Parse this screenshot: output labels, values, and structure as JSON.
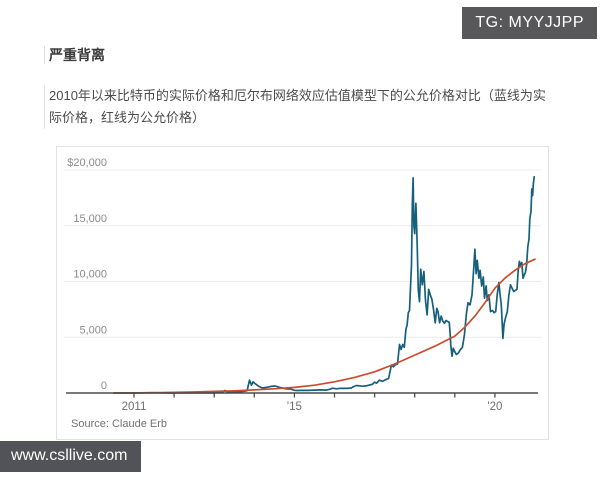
{
  "watermarks": {
    "tg_badge": "TG: MYYJJPP",
    "site_badge": "www.csllive.com"
  },
  "article": {
    "title": "严重背离",
    "body": "2010年以来比特币的实际价格和厄尔布网络效应估值模型下的公允价格对比（蓝线为实际价格，红线为公允价格）"
  },
  "chart_data": {
    "type": "line",
    "title": "",
    "xlabel": "",
    "ylabel": "",
    "source": "Source: Claude Erb",
    "x_range": [
      2010.5,
      2021.1
    ],
    "ylim": [
      0,
      20000
    ],
    "grid": true,
    "legend_position": "none (caption states: blue line = actual price, red line = fair value)",
    "y_ticks": [
      {
        "value": 0,
        "label": "0"
      },
      {
        "value": 5000,
        "label": "5,000"
      },
      {
        "value": 10000,
        "label": "10,000"
      },
      {
        "value": 15000,
        "label": "15,000"
      },
      {
        "value": 20000,
        "label": "$20,000"
      }
    ],
    "x_ticks": [
      {
        "year": 2011,
        "label": "2011"
      },
      {
        "year": 2012,
        "label": ""
      },
      {
        "year": 2013,
        "label": ""
      },
      {
        "year": 2014,
        "label": ""
      },
      {
        "year": 2015,
        "label": "'15"
      },
      {
        "year": 2016,
        "label": ""
      },
      {
        "year": 2017,
        "label": ""
      },
      {
        "year": 2018,
        "label": ""
      },
      {
        "year": 2019,
        "label": ""
      },
      {
        "year": 2020,
        "label": "'20"
      }
    ],
    "colors": {
      "grid": "#ececec",
      "axis": "#4c4c4c",
      "y_label": "#8c8c8c",
      "x_label": "#6e6e6e",
      "source": "#737373",
      "actual": "#16607c",
      "fair_value": "#c84e2f"
    },
    "series": [
      {
        "id": "actual-price",
        "name": "比特币实际价格（蓝线）",
        "color": "#16607c",
        "points": [
          [
            2010.5,
            0
          ],
          [
            2011.0,
            0.5
          ],
          [
            2011.45,
            25
          ],
          [
            2011.9,
            3
          ],
          [
            2012.5,
            8
          ],
          [
            2013.0,
            13
          ],
          [
            2013.2,
            50
          ],
          [
            2013.27,
            230
          ],
          [
            2013.33,
            90
          ],
          [
            2013.5,
            100
          ],
          [
            2013.7,
            130
          ],
          [
            2013.82,
            210
          ],
          [
            2013.88,
            1150
          ],
          [
            2013.93,
            700
          ],
          [
            2013.97,
            1000
          ],
          [
            2014.02,
            840
          ],
          [
            2014.1,
            630
          ],
          [
            2014.2,
            450
          ],
          [
            2014.3,
            500
          ],
          [
            2014.42,
            590
          ],
          [
            2014.52,
            630
          ],
          [
            2014.65,
            480
          ],
          [
            2014.78,
            380
          ],
          [
            2014.9,
            360
          ],
          [
            2015.0,
            240
          ],
          [
            2015.08,
            220
          ],
          [
            2015.2,
            240
          ],
          [
            2015.35,
            235
          ],
          [
            2015.5,
            260
          ],
          [
            2015.65,
            280
          ],
          [
            2015.8,
            260
          ],
          [
            2015.88,
            330
          ],
          [
            2015.95,
            430
          ],
          [
            2016.05,
            380
          ],
          [
            2016.15,
            420
          ],
          [
            2016.3,
            415
          ],
          [
            2016.42,
            450
          ],
          [
            2016.48,
            580
          ],
          [
            2016.55,
            670
          ],
          [
            2016.62,
            650
          ],
          [
            2016.7,
            610
          ],
          [
            2016.78,
            640
          ],
          [
            2016.88,
            720
          ],
          [
            2016.95,
            790
          ],
          [
            2017.0,
            970
          ],
          [
            2017.05,
            890
          ],
          [
            2017.12,
            1150
          ],
          [
            2017.2,
            1050
          ],
          [
            2017.28,
            1200
          ],
          [
            2017.35,
            1300
          ],
          [
            2017.42,
            2500
          ],
          [
            2017.47,
            2350
          ],
          [
            2017.52,
            2550
          ],
          [
            2017.57,
            2600
          ],
          [
            2017.62,
            4350
          ],
          [
            2017.66,
            3900
          ],
          [
            2017.7,
            4350
          ],
          [
            2017.74,
            4100
          ],
          [
            2017.78,
            5700
          ],
          [
            2017.81,
            6100
          ],
          [
            2017.84,
            7200
          ],
          [
            2017.87,
            7400
          ],
          [
            2017.9,
            9900
          ],
          [
            2017.92,
            11500
          ],
          [
            2017.94,
            16800
          ],
          [
            2017.96,
            19300
          ],
          [
            2017.98,
            15000
          ],
          [
            2018.0,
            14300
          ],
          [
            2018.03,
            17000
          ],
          [
            2018.06,
            13600
          ],
          [
            2018.09,
            9200
          ],
          [
            2018.12,
            8200
          ],
          [
            2018.15,
            11100
          ],
          [
            2018.19,
            9700
          ],
          [
            2018.23,
            10900
          ],
          [
            2018.27,
            8300
          ],
          [
            2018.31,
            7000
          ],
          [
            2018.35,
            9300
          ],
          [
            2018.39,
            8800
          ],
          [
            2018.43,
            8400
          ],
          [
            2018.47,
            7500
          ],
          [
            2018.51,
            6300
          ],
          [
            2018.55,
            7600
          ],
          [
            2018.58,
            7300
          ],
          [
            2018.62,
            6300
          ],
          [
            2018.66,
            6900
          ],
          [
            2018.7,
            6450
          ],
          [
            2018.74,
            6250
          ],
          [
            2018.78,
            6500
          ],
          [
            2018.82,
            6400
          ],
          [
            2018.86,
            6350
          ],
          [
            2018.88,
            5500
          ],
          [
            2018.9,
            4300
          ],
          [
            2018.93,
            3300
          ],
          [
            2018.96,
            4000
          ],
          [
            2019.0,
            3700
          ],
          [
            2019.04,
            3450
          ],
          [
            2019.09,
            3600
          ],
          [
            2019.14,
            3900
          ],
          [
            2019.19,
            4100
          ],
          [
            2019.24,
            5200
          ],
          [
            2019.29,
            7100
          ],
          [
            2019.33,
            8100
          ],
          [
            2019.38,
            7900
          ],
          [
            2019.43,
            8800
          ],
          [
            2019.47,
            11000
          ],
          [
            2019.5,
            12900
          ],
          [
            2019.53,
            10700
          ],
          [
            2019.56,
            11900
          ],
          [
            2019.6,
            10300
          ],
          [
            2019.63,
            11000
          ],
          [
            2019.67,
            9600
          ],
          [
            2019.71,
            10400
          ],
          [
            2019.74,
            8500
          ],
          [
            2019.78,
            9600
          ],
          [
            2019.81,
            8300
          ],
          [
            2019.85,
            8800
          ],
          [
            2019.89,
            7300
          ],
          [
            2019.94,
            7400
          ],
          [
            2019.98,
            7200
          ],
          [
            2020.02,
            7300
          ],
          [
            2020.06,
            8900
          ],
          [
            2020.1,
            9900
          ],
          [
            2020.13,
            8800
          ],
          [
            2020.16,
            7900
          ],
          [
            2020.2,
            4900
          ],
          [
            2020.23,
            6200
          ],
          [
            2020.27,
            6800
          ],
          [
            2020.31,
            7300
          ],
          [
            2020.35,
            8800
          ],
          [
            2020.39,
            9700
          ],
          [
            2020.43,
            9400
          ],
          [
            2020.47,
            9100
          ],
          [
            2020.51,
            9200
          ],
          [
            2020.55,
            9300
          ],
          [
            2020.58,
            11000
          ],
          [
            2020.61,
            11800
          ],
          [
            2020.64,
            11400
          ],
          [
            2020.67,
            11700
          ],
          [
            2020.7,
            10300
          ],
          [
            2020.73,
            10600
          ],
          [
            2020.76,
            10800
          ],
          [
            2020.79,
            11500
          ],
          [
            2020.82,
            13100
          ],
          [
            2020.85,
            13800
          ],
          [
            2020.87,
            15600
          ],
          [
            2020.9,
            16300
          ],
          [
            2020.92,
            18300
          ],
          [
            2020.94,
            17700
          ],
          [
            2020.96,
            18800
          ],
          [
            2020.98,
            19400
          ]
        ]
      },
      {
        "id": "fair-value",
        "name": "厄尔布网络效应模型公允价格（红线）",
        "color": "#c84e2f",
        "points": [
          [
            2010.5,
            3
          ],
          [
            2011,
            12
          ],
          [
            2011.5,
            28
          ],
          [
            2012,
            55
          ],
          [
            2012.5,
            90
          ],
          [
            2013,
            140
          ],
          [
            2013.5,
            200
          ],
          [
            2014,
            280
          ],
          [
            2014.5,
            380
          ],
          [
            2015,
            500
          ],
          [
            2015.5,
            700
          ],
          [
            2016,
            1000
          ],
          [
            2016.5,
            1400
          ],
          [
            2017,
            1900
          ],
          [
            2017.5,
            2600
          ],
          [
            2018,
            3400
          ],
          [
            2018.5,
            4200
          ],
          [
            2019,
            5100
          ],
          [
            2019.25,
            5900
          ],
          [
            2019.5,
            6900
          ],
          [
            2019.75,
            8100
          ],
          [
            2020,
            9400
          ],
          [
            2020.25,
            10300
          ],
          [
            2020.5,
            11000
          ],
          [
            2020.75,
            11600
          ],
          [
            2021,
            12000
          ]
        ]
      }
    ]
  }
}
